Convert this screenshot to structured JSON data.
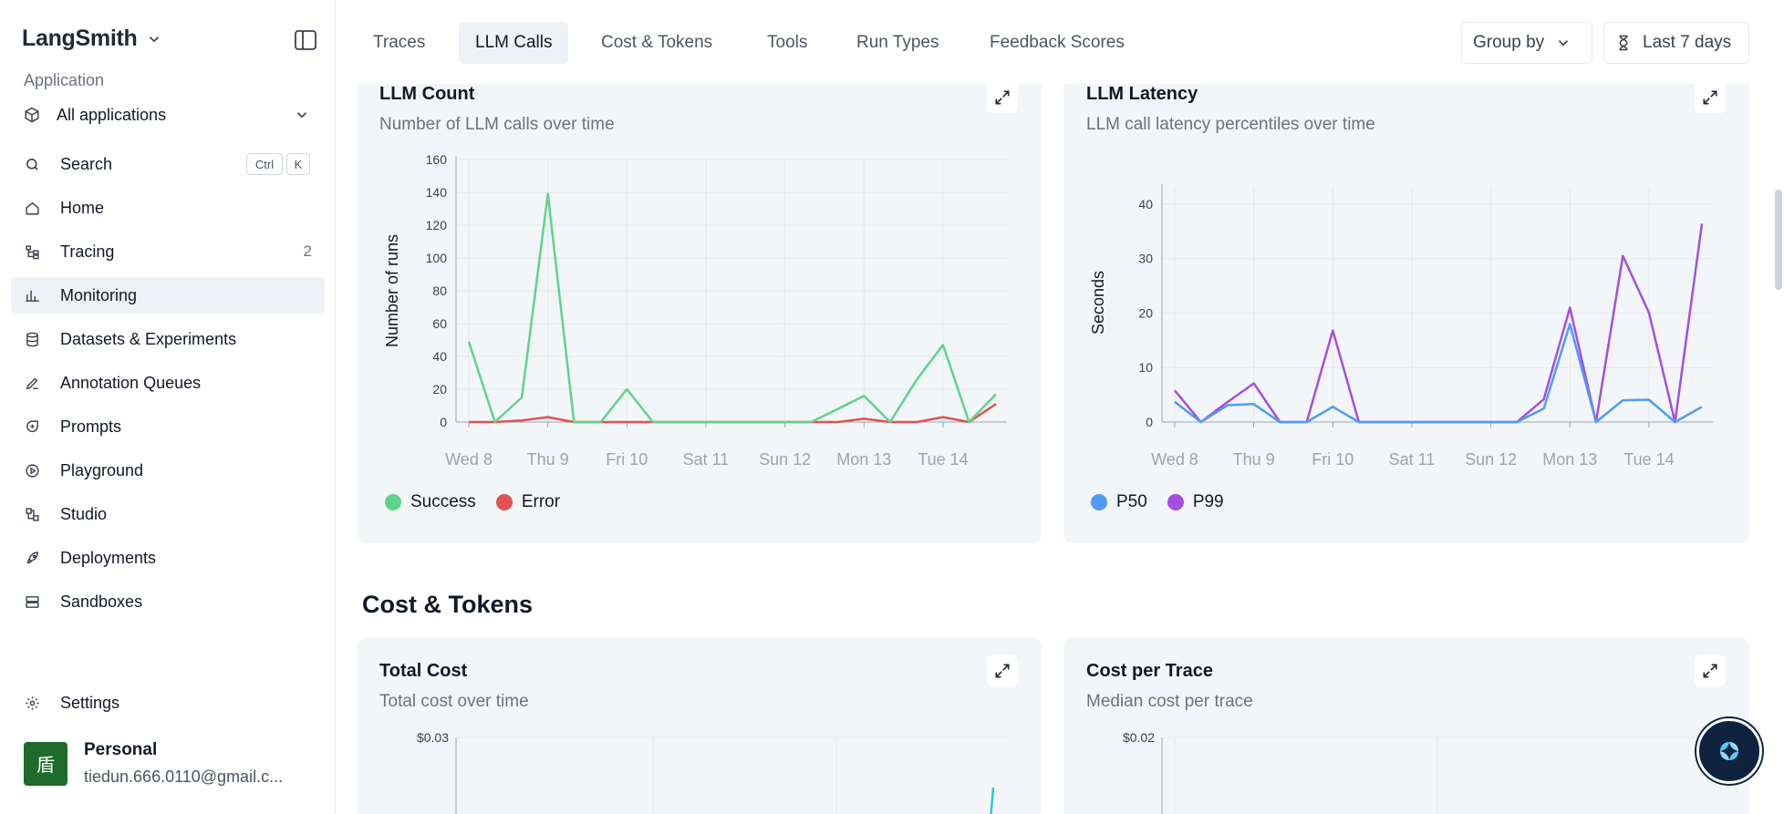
{
  "sidebar": {
    "brand": "LangSmith",
    "section_label": "Application",
    "app_select": "All applications",
    "search": {
      "label": "Search",
      "kbd1": "Ctrl",
      "kbd2": "K"
    },
    "items": [
      {
        "label": "Home",
        "icon": "home-icon"
      },
      {
        "label": "Tracing",
        "icon": "tracing-icon",
        "badge": "2"
      },
      {
        "label": "Monitoring",
        "icon": "bar-chart-icon",
        "active": true
      },
      {
        "label": "Datasets & Experiments",
        "icon": "database-icon"
      },
      {
        "label": "Annotation Queues",
        "icon": "pen-icon"
      },
      {
        "label": "Prompts",
        "icon": "prompt-icon"
      },
      {
        "label": "Playground",
        "icon": "play-icon"
      },
      {
        "label": "Studio",
        "icon": "studio-icon"
      },
      {
        "label": "Deployments",
        "icon": "rocket-icon"
      },
      {
        "label": "Sandboxes",
        "icon": "server-icon"
      }
    ],
    "settings": "Settings",
    "user": {
      "avatar": "盾",
      "name": "Personal",
      "email": "tiedun.666.0110@gmail.c..."
    }
  },
  "topbar": {
    "tabs": [
      "Traces",
      "LLM Calls",
      "Cost & Tokens",
      "Tools",
      "Run Types",
      "Feedback Scores"
    ],
    "active_tab": "LLM Calls",
    "group_by": "Group by",
    "time_range": "Last 7 days"
  },
  "cards": {
    "llm_count": {
      "title": "LLM Count",
      "subtitle": "Number of LLM calls over time"
    },
    "llm_latency": {
      "title": "LLM Latency",
      "subtitle": "LLM call latency percentiles over time"
    },
    "total_cost": {
      "title": "Total Cost",
      "subtitle": "Total cost over time"
    },
    "cost_per_trace": {
      "title": "Cost per Trace",
      "subtitle": "Median cost per trace"
    }
  },
  "section_cost": "Cost & Tokens",
  "chart_data": [
    {
      "type": "line",
      "title": "LLM Count",
      "ylabel": "Number of runs",
      "ylim": [
        0,
        160
      ],
      "yticks": [
        0,
        20,
        40,
        60,
        80,
        100,
        120,
        140,
        160
      ],
      "xticks": [
        "Wed 8",
        "Thu 9",
        "Fri 10",
        "Sat 11",
        "Sun 12",
        "Mon 13",
        "Tue 14"
      ],
      "x": [
        0,
        0.33,
        0.67,
        1,
        1.33,
        1.67,
        2,
        2.33,
        2.67,
        3,
        3.33,
        3.67,
        4,
        4.33,
        4.67,
        5,
        5.33,
        5.67,
        6,
        6.33,
        6.67
      ],
      "series": [
        {
          "name": "Success",
          "color": "#5ed48a",
          "values": [
            49,
            0,
            15,
            139,
            0,
            0,
            20,
            0,
            0,
            0,
            0,
            0,
            0,
            0,
            8,
            16,
            0,
            26,
            47,
            0,
            17
          ]
        },
        {
          "name": "Error",
          "color": "#e05252",
          "values": [
            0,
            0,
            1,
            3,
            0,
            0,
            0,
            0,
            0,
            0,
            0,
            0,
            0,
            0,
            0,
            2,
            0,
            0,
            3,
            0,
            11
          ]
        }
      ]
    },
    {
      "type": "line",
      "title": "LLM Latency",
      "ylabel": "Seconds",
      "ylim": [
        0,
        43
      ],
      "yticks": [
        0,
        10,
        20,
        30,
        40
      ],
      "xticks": [
        "Wed 8",
        "Thu 9",
        "Fri 10",
        "Sat 11",
        "Sun 12",
        "Mon 13",
        "Tue 14"
      ],
      "x": [
        0,
        0.33,
        0.67,
        1,
        1.33,
        1.67,
        2,
        2.33,
        2.67,
        3,
        3.33,
        3.67,
        4,
        4.33,
        4.67,
        5,
        5.33,
        5.67,
        6,
        6.33,
        6.67
      ],
      "series": [
        {
          "name": "P50",
          "color": "#4f9bf5",
          "values": [
            3.7,
            0,
            3.1,
            3.3,
            0,
            0,
            2.8,
            0,
            0,
            0,
            0,
            0,
            0,
            0,
            2.5,
            18,
            0,
            4,
            4.1,
            0,
            2.8
          ]
        },
        {
          "name": "P99",
          "color": "#a54ee0",
          "values": [
            5.8,
            0,
            3.7,
            7.1,
            0,
            0,
            16.8,
            0,
            0,
            0,
            0,
            0,
            0,
            0,
            4.2,
            21,
            0,
            30.5,
            20.1,
            0,
            36.4
          ]
        }
      ]
    },
    {
      "type": "line",
      "title": "Total Cost",
      "ytick_top": "$0.03"
    },
    {
      "type": "line",
      "title": "Cost per Trace",
      "ytick_top": "$0.02"
    }
  ]
}
